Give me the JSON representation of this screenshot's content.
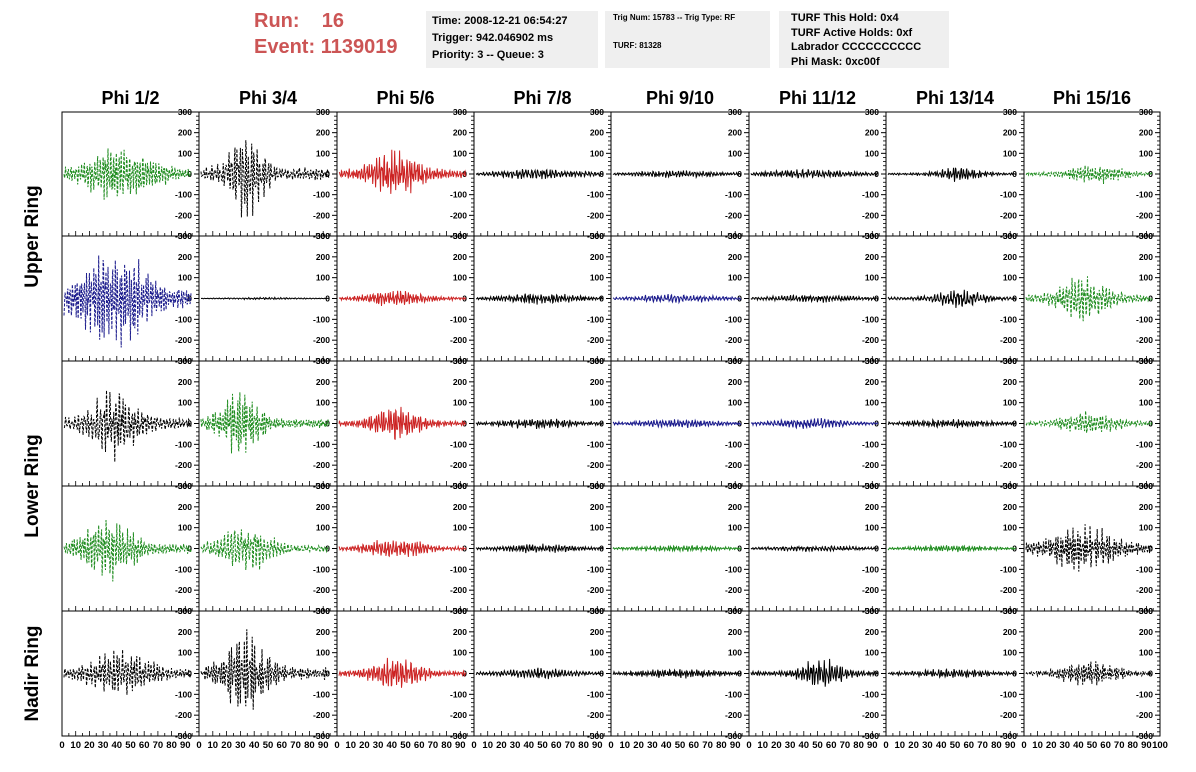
{
  "header": {
    "run_label": "Run:",
    "run_value": "16",
    "event_label": "Event:",
    "event_value": "1139019",
    "time": "Time: 2008-12-21 06:54:27",
    "trigger": "Trigger: 942.046902 ms",
    "priority": "Priority: 3 -- Queue: 3",
    "trig_num": "Trig Num: 15783 -- Trig Type: RF",
    "turf": "TURF: 81328",
    "turf_this_hold": "TURF This Hold: 0x4",
    "turf_active_holds": "TURF Active Holds: 0xf",
    "labrador": "Labrador CCCCCCCCCC",
    "phi_mask": "Phi Mask: 0xc00f"
  },
  "chart_data": {
    "type": "line",
    "description_columns": [
      "Phi 1/2",
      "Phi 3/4",
      "Phi 5/6",
      "Phi 7/8",
      "Phi 9/10",
      "Phi 11/12",
      "Phi 13/14",
      "Phi 15/16"
    ],
    "ring_labels": [
      "Upper Ring",
      "Lower Ring",
      "Nadir Ring"
    ],
    "ylim": [
      -300,
      300
    ],
    "yticks": [
      "300",
      "200",
      "100",
      "0",
      "-100",
      "-200",
      "-300"
    ],
    "xlim": [
      0,
      100
    ],
    "xticks": [
      "0",
      "10",
      "20",
      "30",
      "40",
      "50",
      "60",
      "70",
      "80",
      "90",
      "100"
    ],
    "last_xtick": "100",
    "colors": {
      "black": "#000000",
      "green": "#1e8c1e",
      "red": "#cc2222",
      "blue": "#1a1a8c"
    },
    "panels": [
      [
        {
          "color": "green",
          "dashed": true,
          "amp": 130,
          "center": 45,
          "width": 30
        },
        {
          "color": "black",
          "dashed": true,
          "amp": 200,
          "center": 35,
          "width": 15
        },
        {
          "color": "red",
          "dashed": false,
          "amp": 110,
          "center": 45,
          "width": 22
        },
        {
          "color": "black",
          "dashed": false,
          "amp": 25,
          "center": 50,
          "width": 40
        },
        {
          "color": "black",
          "dashed": false,
          "amp": 18,
          "center": 50,
          "width": 40
        },
        {
          "color": "black",
          "dashed": false,
          "amp": 22,
          "center": 45,
          "width": 40
        },
        {
          "color": "black",
          "dashed": false,
          "amp": 35,
          "center": 55,
          "width": 18
        },
        {
          "color": "green",
          "dashed": true,
          "amp": 45,
          "center": 55,
          "width": 25
        }
      ],
      [
        {
          "color": "blue",
          "dashed": true,
          "amp": 220,
          "center": 40,
          "width": 32
        },
        {
          "color": "black",
          "dashed": false,
          "amp": 5,
          "center": 50,
          "width": 40
        },
        {
          "color": "red",
          "dashed": false,
          "amp": 40,
          "center": 45,
          "width": 25
        },
        {
          "color": "black",
          "dashed": false,
          "amp": 25,
          "center": 50,
          "width": 35
        },
        {
          "color": "blue",
          "dashed": false,
          "amp": 20,
          "center": 50,
          "width": 40
        },
        {
          "color": "black",
          "dashed": false,
          "amp": 18,
          "center": 50,
          "width": 40
        },
        {
          "color": "black",
          "dashed": false,
          "amp": 45,
          "center": 55,
          "width": 20
        },
        {
          "color": "green",
          "dashed": true,
          "amp": 110,
          "center": 45,
          "width": 22
        }
      ],
      [
        {
          "color": "black",
          "dashed": true,
          "amp": 170,
          "center": 40,
          "width": 20
        },
        {
          "color": "green",
          "dashed": true,
          "amp": 150,
          "center": 30,
          "width": 18
        },
        {
          "color": "red",
          "dashed": false,
          "amp": 80,
          "center": 45,
          "width": 20
        },
        {
          "color": "black",
          "dashed": false,
          "amp": 25,
          "center": 50,
          "width": 35
        },
        {
          "color": "blue",
          "dashed": false,
          "amp": 20,
          "center": 50,
          "width": 40
        },
        {
          "color": "blue",
          "dashed": false,
          "amp": 25,
          "center": 45,
          "width": 35
        },
        {
          "color": "black",
          "dashed": false,
          "amp": 20,
          "center": 50,
          "width": 40
        },
        {
          "color": "green",
          "dashed": true,
          "amp": 55,
          "center": 50,
          "width": 25
        }
      ],
      [
        {
          "color": "green",
          "dashed": true,
          "amp": 150,
          "center": 35,
          "width": 22
        },
        {
          "color": "green",
          "dashed": true,
          "amp": 110,
          "center": 35,
          "width": 22
        },
        {
          "color": "red",
          "dashed": false,
          "amp": 50,
          "center": 45,
          "width": 25
        },
        {
          "color": "black",
          "dashed": false,
          "amp": 22,
          "center": 50,
          "width": 35
        },
        {
          "color": "green",
          "dashed": false,
          "amp": 15,
          "center": 50,
          "width": 40
        },
        {
          "color": "black",
          "dashed": false,
          "amp": 15,
          "center": 50,
          "width": 40
        },
        {
          "color": "green",
          "dashed": false,
          "amp": 15,
          "center": 50,
          "width": 40
        },
        {
          "color": "black",
          "dashed": true,
          "amp": 110,
          "center": 45,
          "width": 30
        }
      ],
      [
        {
          "color": "black",
          "dashed": true,
          "amp": 100,
          "center": 45,
          "width": 30
        },
        {
          "color": "black",
          "dashed": true,
          "amp": 190,
          "center": 35,
          "width": 18
        },
        {
          "color": "red",
          "dashed": false,
          "amp": 75,
          "center": 45,
          "width": 22
        },
        {
          "color": "black",
          "dashed": false,
          "amp": 25,
          "center": 50,
          "width": 35
        },
        {
          "color": "black",
          "dashed": false,
          "amp": 22,
          "center": 50,
          "width": 40
        },
        {
          "color": "black",
          "dashed": false,
          "amp": 70,
          "center": 55,
          "width": 18
        },
        {
          "color": "black",
          "dashed": false,
          "amp": 20,
          "center": 50,
          "width": 40
        },
        {
          "color": "black",
          "dashed": true,
          "amp": 60,
          "center": 50,
          "width": 25
        }
      ]
    ]
  }
}
